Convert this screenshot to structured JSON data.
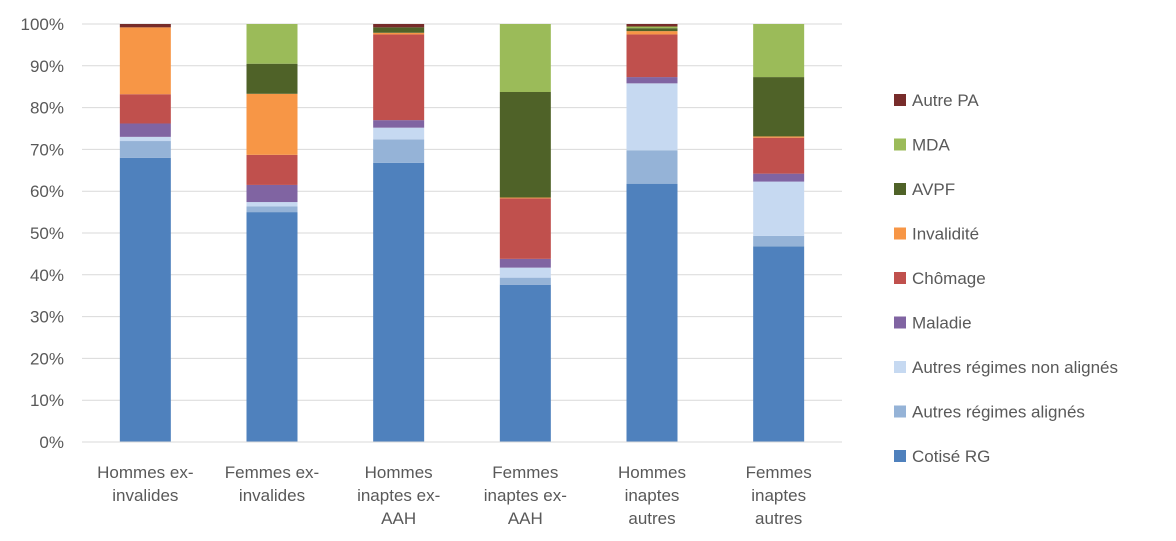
{
  "chart_data": {
    "type": "bar",
    "stacked": "percent",
    "categories": [
      [
        "Hommes ex-",
        "invalides"
      ],
      [
        "Femmes ex-",
        "invalides"
      ],
      [
        "Hommes",
        "inaptes ex-",
        "AAH"
      ],
      [
        "Femmes",
        "inaptes ex-",
        "AAH"
      ],
      [
        "Hommes",
        "inaptes",
        "autres"
      ],
      [
        "Femmes",
        "inaptes",
        "autres"
      ]
    ],
    "ylim": [
      0,
      100
    ],
    "yticks": [
      "0%",
      "10%",
      "20%",
      "30%",
      "40%",
      "50%",
      "60%",
      "70%",
      "80%",
      "90%",
      "100%"
    ],
    "grid": true,
    "legend_position": "right",
    "series": [
      {
        "name": "Cotisé RG",
        "color": "#4F81BD",
        "values": [
          68,
          55,
          66.8,
          37.7,
          61.8,
          46.8
        ]
      },
      {
        "name": "Autres régimes alignés",
        "color": "#95B3D7",
        "values": [
          4,
          1.4,
          5.6,
          1.7,
          8,
          2.5
        ]
      },
      {
        "name": "Autres régimes non alignés",
        "color": "#C6D9F1",
        "values": [
          1,
          1,
          2.8,
          2.4,
          16,
          13
        ]
      },
      {
        "name": "Maladie",
        "color": "#8064A2",
        "values": [
          3.2,
          4.1,
          1.8,
          2.1,
          1.5,
          1.9
        ]
      },
      {
        "name": "Chômage",
        "color": "#C0504D",
        "values": [
          7,
          7.2,
          20.5,
          14.5,
          10.2,
          8.6
        ]
      },
      {
        "name": "Invalidité",
        "color": "#F79646",
        "values": [
          16,
          14.6,
          0.4,
          0.2,
          0.8,
          0.3
        ]
      },
      {
        "name": "AVPF",
        "color": "#4F6228",
        "values": [
          0,
          7.2,
          1.3,
          25.3,
          0.7,
          14.2
        ]
      },
      {
        "name": "MDA",
        "color": "#9BBB59",
        "values": [
          0,
          9.5,
          0,
          16.3,
          0.4,
          12.7
        ]
      },
      {
        "name": "Autre PA",
        "color": "#772C2A",
        "values": [
          0.8,
          0,
          0.8,
          0,
          0.6,
          0
        ]
      }
    ]
  }
}
